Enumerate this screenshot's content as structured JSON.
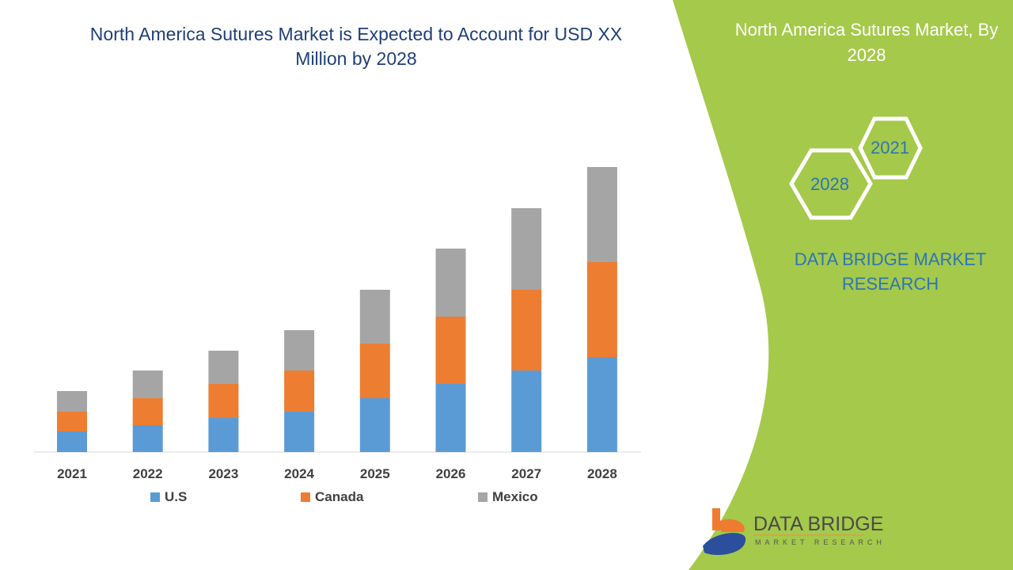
{
  "title": "North America Sutures Market is Expected to Account for USD XX Million by 2028",
  "side_panel": {
    "title": "North America Sutures Market, By 2028",
    "hexagons": [
      "2021",
      "2028"
    ],
    "brand": "DATA BRIDGE MARKET RESEARCH",
    "panel_color": "#a5c94a"
  },
  "logo": {
    "name": "DATA BRIDGE",
    "tagline": "MARKET RESEARCH"
  },
  "chart_data": {
    "type": "bar",
    "stacked": true,
    "categories": [
      "2021",
      "2022",
      "2023",
      "2024",
      "2025",
      "2026",
      "2027",
      "2028"
    ],
    "series": [
      {
        "name": "U.S",
        "color": "#5b9bd5",
        "values": [
          26,
          34,
          43,
          51,
          68,
          86,
          103,
          120
        ]
      },
      {
        "name": "Canada",
        "color": "#ed7d31",
        "values": [
          25,
          34,
          43,
          52,
          69,
          85,
          102,
          120
        ]
      },
      {
        "name": "Mexico",
        "color": "#a5a5a5",
        "values": [
          26,
          35,
          42,
          51,
          68,
          86,
          103,
          120
        ]
      }
    ],
    "ylim": [
      0,
      400
    ],
    "y_axis_shown": false,
    "grid": false,
    "legend": "bottom"
  }
}
